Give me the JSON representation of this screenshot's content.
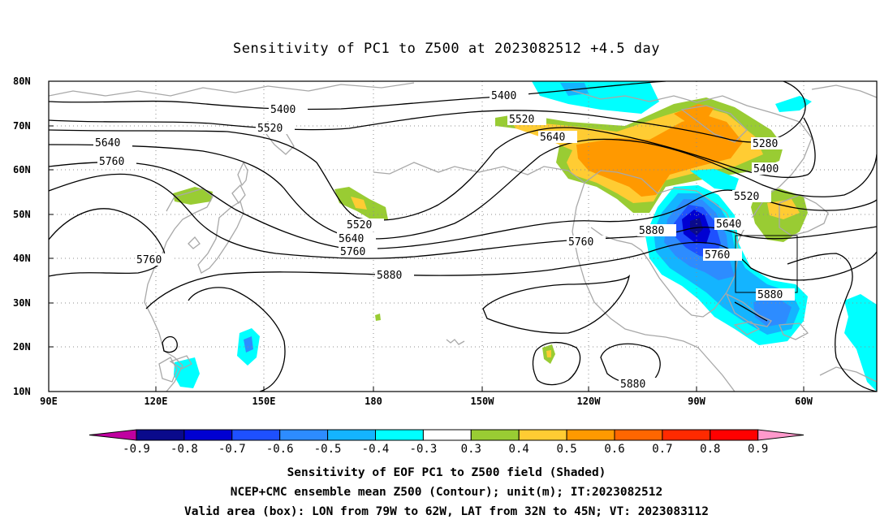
{
  "title": "Sensitivity of PC1 to Z500 at 2023082512 +4.5 day",
  "axes": {
    "lat_labels": [
      "80N",
      "70N",
      "60N",
      "50N",
      "40N",
      "30N",
      "20N",
      "10N"
    ],
    "lon_labels": [
      "90E",
      "120E",
      "150E",
      "180",
      "150W",
      "120W",
      "90W",
      "60W"
    ]
  },
  "contour_labels": [
    "5400",
    "5520",
    "5640",
    "5760",
    "5880",
    "5280"
  ],
  "colorbar": {
    "labels": [
      "-0.9",
      "-0.8",
      "-0.7",
      "-0.6",
      "-0.5",
      "-0.4",
      "-0.3",
      "0.3",
      "0.4",
      "0.5",
      "0.6",
      "0.7",
      "0.8",
      "0.9"
    ],
    "colors": [
      "#c000a0",
      "#0a0a8c",
      "#0000d2",
      "#1e50ff",
      "#2d8cff",
      "#14b4ff",
      "#00ffff",
      "#ffffff",
      "#99cc33",
      "#ffcc33",
      "#ff9900",
      "#ff6600",
      "#ff2a00",
      "#ff0000",
      "#ff99cc"
    ]
  },
  "captions": [
    "Sensitivity of EOF PC1 to Z500 field (Shaded)",
    "NCEP+CMC ensemble mean Z500 (Contour); unit(m); IT:2023082512",
    "Valid area (box): LON from 79W to 62W, LAT from 32N to 45N; VT: 2023083112"
  ],
  "shading_colors": {
    "green": "#99cc33",
    "yellow": "#ffcc33",
    "orange": "#ff9900",
    "cyan": "#00ffff",
    "lightblue": "#14b4ff",
    "midblue": "#2d8cff",
    "blue": "#1e50ff",
    "darkblue": "#0000d2",
    "navy": "#0a0a8c"
  }
}
